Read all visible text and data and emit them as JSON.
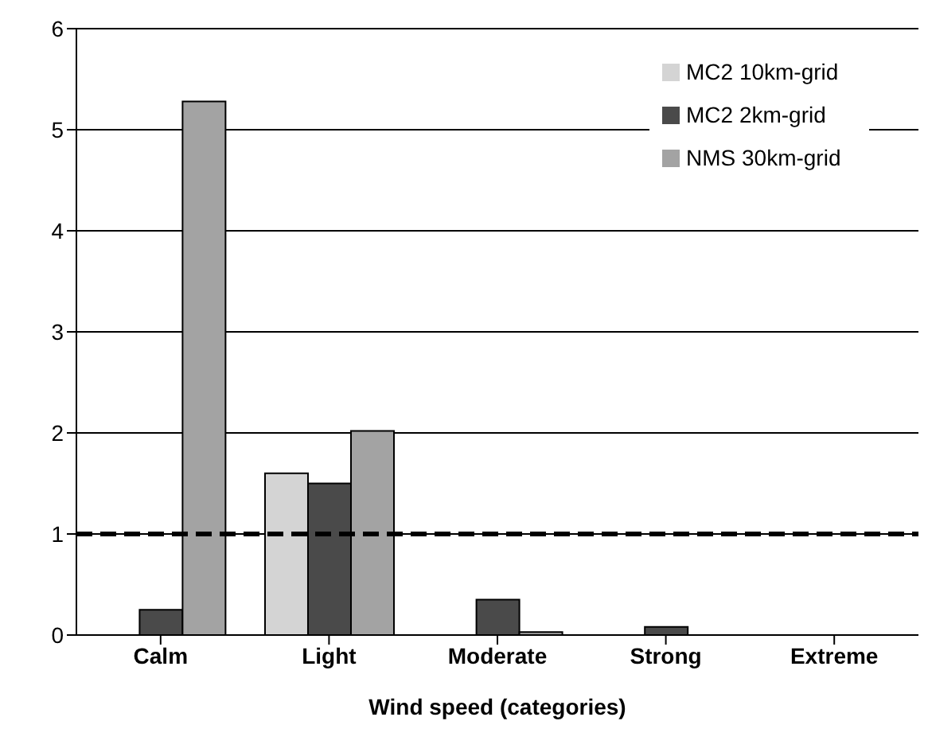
{
  "chart_data": {
    "type": "bar",
    "xlabel": "Wind speed (categories)",
    "categories": [
      "Calm",
      "Light",
      "Moderate",
      "Strong",
      "Extreme"
    ],
    "series": [
      {
        "name": "MC2 10km-grid",
        "color": "#d4d4d4",
        "values": [
          0,
          1.6,
          0,
          0,
          0
        ]
      },
      {
        "name": "MC2 2km-grid",
        "color": "#4a4a4a",
        "values": [
          0.25,
          1.5,
          0.35,
          0.08,
          0
        ]
      },
      {
        "name": "NMS 30km-grid",
        "color": "#a3a3a3",
        "values": [
          5.28,
          2.02,
          0.03,
          0,
          0
        ]
      }
    ],
    "ylim": [
      0,
      6
    ],
    "yticks": [
      0,
      1,
      2,
      3,
      4,
      5,
      6
    ],
    "grid": "y",
    "legend": "top right",
    "ref_lines": [
      {
        "axis": "y",
        "value": 1,
        "color": "#000000",
        "line_style": "dashed"
      }
    ]
  }
}
